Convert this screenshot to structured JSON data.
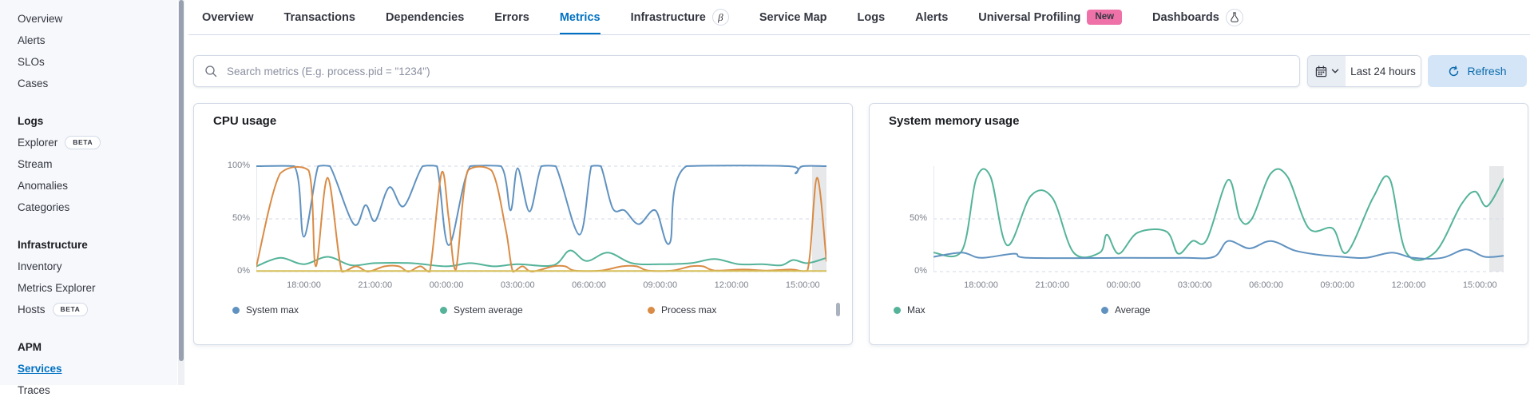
{
  "sidebar": {
    "groups": [
      {
        "items": [
          {
            "label": "Overview"
          },
          {
            "label": "Alerts"
          },
          {
            "label": "SLOs"
          },
          {
            "label": "Cases"
          }
        ]
      },
      {
        "header": "Logs",
        "items": [
          {
            "label": "Explorer",
            "badge": "BETA"
          },
          {
            "label": "Stream"
          },
          {
            "label": "Anomalies"
          },
          {
            "label": "Categories"
          }
        ]
      },
      {
        "header": "Infrastructure",
        "items": [
          {
            "label": "Inventory"
          },
          {
            "label": "Metrics Explorer"
          },
          {
            "label": "Hosts",
            "badge": "BETA"
          }
        ]
      },
      {
        "header": "APM",
        "items": [
          {
            "label": "Services",
            "active": true
          },
          {
            "label": "Traces"
          }
        ]
      }
    ]
  },
  "tabs": [
    {
      "label": "Overview"
    },
    {
      "label": "Transactions"
    },
    {
      "label": "Dependencies"
    },
    {
      "label": "Errors"
    },
    {
      "label": "Metrics",
      "active": true
    },
    {
      "label": "Infrastructure",
      "badge_text": "β",
      "badge_type": "beta"
    },
    {
      "label": "Service Map"
    },
    {
      "label": "Logs"
    },
    {
      "label": "Alerts"
    },
    {
      "label": "Universal Profiling",
      "badge_text": "New",
      "badge_type": "new"
    },
    {
      "label": "Dashboards",
      "badge_type": "flask"
    }
  ],
  "search": {
    "placeholder": "Search metrics (E.g. process.pid = \"1234\")"
  },
  "datepicker": {
    "value": "Last 24 hours"
  },
  "refresh": {
    "label": "Refresh"
  },
  "colors": {
    "accent_blue": "#0071c2",
    "pink_badge": "#ee72a8",
    "series_blue": "#6092C0",
    "series_green": "#54B399",
    "series_orange": "#DA8B45",
    "series_yellow": "#D6BF57"
  },
  "chart_data": [
    {
      "type": "line",
      "title": "CPU usage",
      "ylabel": "percent",
      "ylim": [
        0,
        100
      ],
      "grid": "dashed-horizontal",
      "legend_position": "bottom",
      "x_range_hours": 24,
      "x_ticks": [
        {
          "hour": 2,
          "label": "18:00:00"
        },
        {
          "hour": 5,
          "label": "21:00:00"
        },
        {
          "hour": 8,
          "label": "00:00:00"
        },
        {
          "hour": 11,
          "label": "03:00:00"
        },
        {
          "hour": 14,
          "label": "06:00:00"
        },
        {
          "hour": 17,
          "label": "09:00:00"
        },
        {
          "hour": 20,
          "label": "12:00:00"
        },
        {
          "hour": 23,
          "label": "15:00:00"
        }
      ],
      "y_ticks": [
        {
          "value": 100,
          "label": "100%"
        },
        {
          "value": 50,
          "label": "50%"
        },
        {
          "value": 0,
          "label": "0%"
        }
      ],
      "legend": [
        {
          "name": "System max",
          "color": "#6092C0"
        },
        {
          "name": "System average",
          "color": "#54B399"
        },
        {
          "name": "Process max",
          "color": "#DA8B45"
        }
      ],
      "series": [
        {
          "name": "System max",
          "color": "#6092C0",
          "points": [
            [
              0,
              100
            ],
            [
              1.6,
              100
            ],
            [
              2,
              33
            ],
            [
              2.6,
              100
            ],
            [
              3.1,
              100
            ],
            [
              4.1,
              45
            ],
            [
              4.6,
              63
            ],
            [
              5,
              48
            ],
            [
              5.6,
              80
            ],
            [
              6.2,
              62
            ],
            [
              7,
              100
            ],
            [
              7.6,
              100
            ],
            [
              8.1,
              25
            ],
            [
              9,
              100
            ],
            [
              10.3,
              100
            ],
            [
              10.7,
              58
            ],
            [
              11,
              98
            ],
            [
              11.5,
              57
            ],
            [
              12,
              100
            ],
            [
              12.6,
              100
            ],
            [
              13.6,
              35
            ],
            [
              14.1,
              100
            ],
            [
              14.5,
              100
            ],
            [
              15,
              60
            ],
            [
              15.5,
              58
            ],
            [
              16.1,
              45
            ],
            [
              16.8,
              58
            ],
            [
              17.4,
              27
            ],
            [
              18.1,
              100
            ],
            [
              22.4,
              100
            ],
            [
              22.7,
              93
            ],
            [
              23,
              100
            ],
            [
              24,
              100
            ]
          ]
        },
        {
          "name": "System average",
          "color": "#54B399",
          "points": [
            [
              0,
              5
            ],
            [
              1,
              13
            ],
            [
              2,
              7
            ],
            [
              3,
              14
            ],
            [
              4,
              6
            ],
            [
              5,
              8
            ],
            [
              6.5,
              8
            ],
            [
              8,
              5
            ],
            [
              9,
              8
            ],
            [
              10,
              5
            ],
            [
              11,
              7
            ],
            [
              12.5,
              6
            ],
            [
              13.2,
              20
            ],
            [
              13.9,
              10
            ],
            [
              14.8,
              18
            ],
            [
              15.8,
              8
            ],
            [
              17,
              7
            ],
            [
              18.3,
              8
            ],
            [
              19.3,
              12
            ],
            [
              20.3,
              7
            ],
            [
              21.3,
              7
            ],
            [
              22.1,
              6
            ],
            [
              22.6,
              11
            ],
            [
              23.2,
              8
            ],
            [
              24,
              13
            ]
          ]
        },
        {
          "name": "Process max",
          "color": "#DA8B45",
          "points": [
            [
              0,
              5
            ],
            [
              1,
              93
            ],
            [
              2.2,
              96
            ],
            [
              2.5,
              5
            ],
            [
              3,
              89
            ],
            [
              3.6,
              0
            ],
            [
              4.2,
              5
            ],
            [
              4.7,
              0
            ],
            [
              5.4,
              5
            ],
            [
              6,
              5
            ],
            [
              6.4,
              0
            ],
            [
              6.9,
              5
            ],
            [
              7.3,
              0
            ],
            [
              7.8,
              94
            ],
            [
              8.1,
              50
            ],
            [
              8.4,
              2
            ],
            [
              8.9,
              96
            ],
            [
              9.9,
              96
            ],
            [
              10.5,
              40
            ],
            [
              10.8,
              0
            ],
            [
              11.2,
              5
            ],
            [
              11.6,
              0
            ],
            [
              12.5,
              5
            ],
            [
              13,
              5
            ],
            [
              13.4,
              1
            ],
            [
              14.5,
              1
            ],
            [
              15.4,
              5
            ],
            [
              16,
              5
            ],
            [
              16.5,
              1
            ],
            [
              17.5,
              1
            ],
            [
              18.3,
              5
            ],
            [
              18.8,
              5
            ],
            [
              19.3,
              1
            ],
            [
              20.5,
              2
            ],
            [
              21.5,
              1
            ],
            [
              22.5,
              2
            ],
            [
              23.2,
              1
            ],
            [
              23.6,
              89
            ],
            [
              24,
              10
            ]
          ]
        },
        {
          "name": "",
          "color": "#D6BF57",
          "points": [
            [
              0,
              0.5
            ],
            [
              24,
              0.5
            ]
          ]
        }
      ]
    },
    {
      "type": "line",
      "title": "System memory usage",
      "ylabel": "percent",
      "ylim": [
        0,
        100
      ],
      "grid": "dashed-horizontal",
      "legend_position": "bottom",
      "x_range_hours": 24,
      "x_ticks": [
        {
          "hour": 2,
          "label": "18:00:00"
        },
        {
          "hour": 5,
          "label": "21:00:00"
        },
        {
          "hour": 8,
          "label": "00:00:00"
        },
        {
          "hour": 11,
          "label": "03:00:00"
        },
        {
          "hour": 14,
          "label": "06:00:00"
        },
        {
          "hour": 17,
          "label": "09:00:00"
        },
        {
          "hour": 20,
          "label": "12:00:00"
        },
        {
          "hour": 23,
          "label": "15:00:00"
        }
      ],
      "y_ticks": [
        {
          "value": 50,
          "label": "50%"
        },
        {
          "value": 0,
          "label": "0%"
        }
      ],
      "legend": [
        {
          "name": "Max",
          "color": "#54B399"
        },
        {
          "name": "Average",
          "color": "#6092C0"
        }
      ],
      "series": [
        {
          "name": "Max",
          "color": "#54B399",
          "points": [
            [
              0,
              18
            ],
            [
              1.2,
              20
            ],
            [
              1.8,
              88
            ],
            [
              2.4,
              90
            ],
            [
              3.1,
              25
            ],
            [
              4.1,
              72
            ],
            [
              5,
              70
            ],
            [
              5.9,
              18
            ],
            [
              7,
              18
            ],
            [
              7.3,
              35
            ],
            [
              7.8,
              17
            ],
            [
              8.6,
              37
            ],
            [
              9.8,
              38
            ],
            [
              10.3,
              17
            ],
            [
              10.9,
              29
            ],
            [
              11.5,
              30
            ],
            [
              12.4,
              87
            ],
            [
              12.9,
              50
            ],
            [
              13.4,
              50
            ],
            [
              14.2,
              93
            ],
            [
              14.9,
              90
            ],
            [
              15.8,
              41
            ],
            [
              16.8,
              41
            ],
            [
              17.4,
              18
            ],
            [
              18.5,
              70
            ],
            [
              19.2,
              88
            ],
            [
              19.9,
              18
            ],
            [
              21.1,
              18
            ],
            [
              22.2,
              63
            ],
            [
              22.8,
              76
            ],
            [
              23.3,
              62
            ],
            [
              24,
              88
            ]
          ]
        },
        {
          "name": "Average",
          "color": "#6092C0",
          "points": [
            [
              0,
              14
            ],
            [
              1.2,
              18
            ],
            [
              2,
              13
            ],
            [
              3.4,
              17
            ],
            [
              4,
              13
            ],
            [
              8,
              13
            ],
            [
              10.5,
              13
            ],
            [
              11.8,
              14
            ],
            [
              12.4,
              29
            ],
            [
              13.3,
              22
            ],
            [
              14.2,
              29
            ],
            [
              15.2,
              20
            ],
            [
              16.2,
              16
            ],
            [
              17.2,
              14
            ],
            [
              18.2,
              13
            ],
            [
              19.3,
              18
            ],
            [
              20.2,
              13
            ],
            [
              21.4,
              13
            ],
            [
              22.4,
              21
            ],
            [
              23.2,
              14
            ],
            [
              24,
              15
            ]
          ]
        }
      ]
    }
  ]
}
